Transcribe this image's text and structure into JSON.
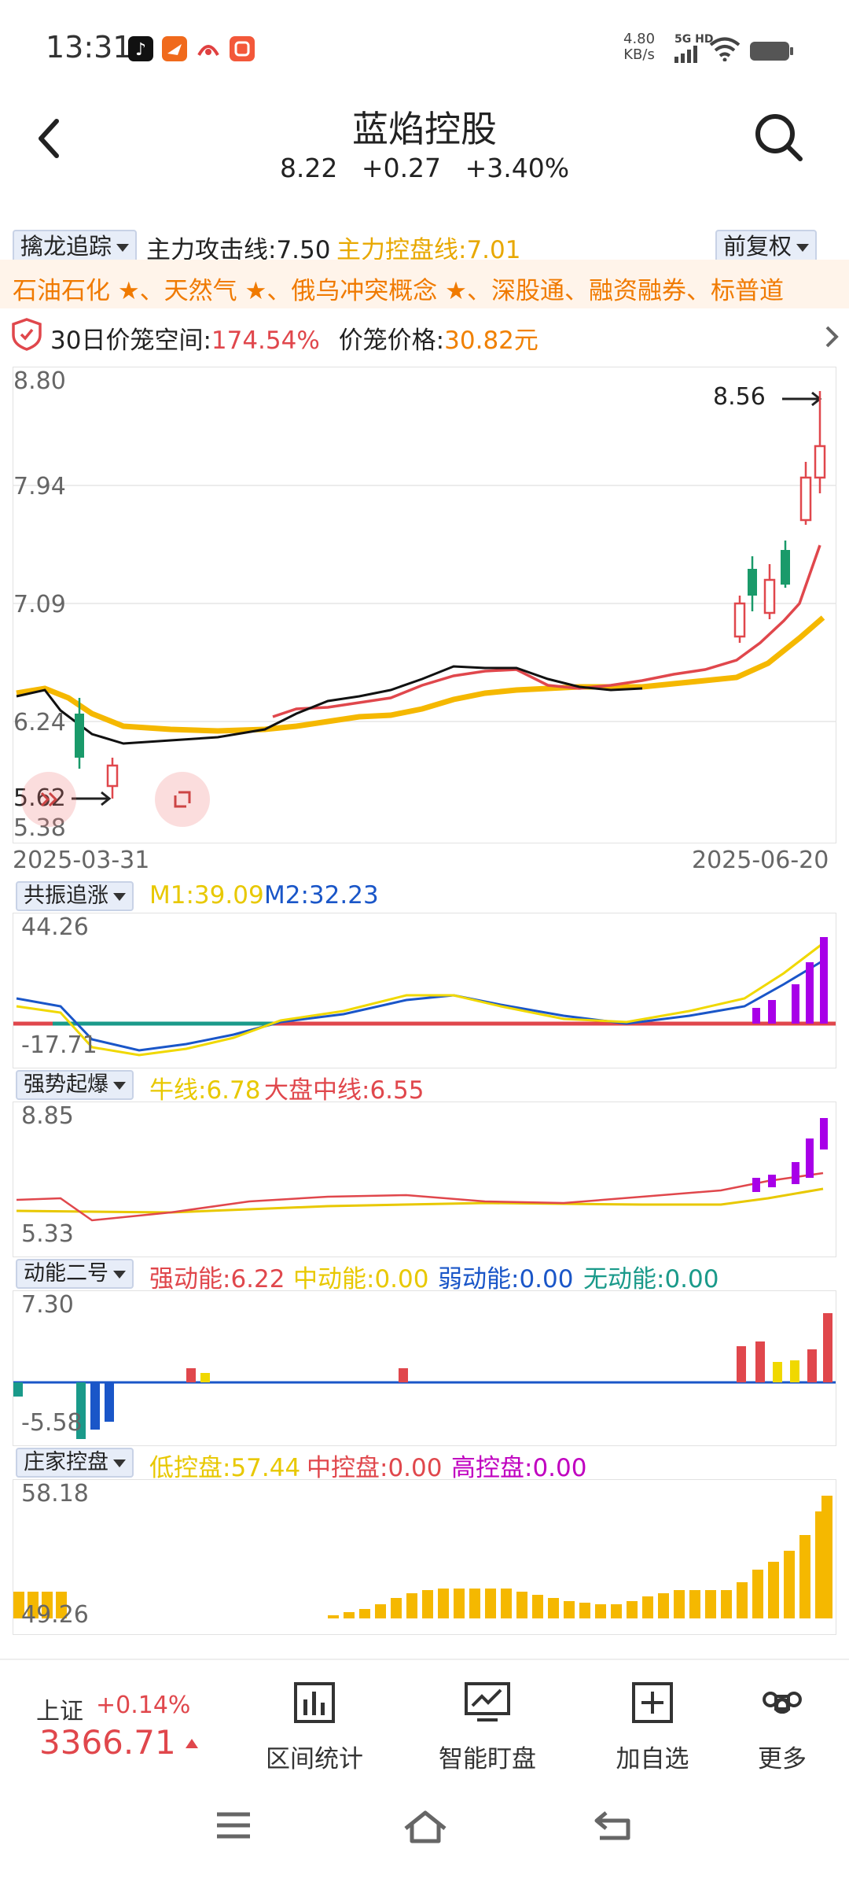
{
  "status": {
    "time": "13:31",
    "net_speed": "4.80",
    "net_unit": "KB/s",
    "net_type": "5G HD",
    "app_icons": [
      "tiktok-icon",
      "feishu-icon",
      "ai-app-icon",
      "taobao-icon"
    ]
  },
  "header": {
    "title": "蓝焰控股",
    "price": "8.22",
    "change": "+0.27",
    "change_pct": "+3.40%"
  },
  "indicator_bar": {
    "dropdown": "擒龙追踪",
    "attack_line": "主力攻击线:7.50",
    "control_line": "主力控盘线:7.01",
    "right_dropdown": "前复权"
  },
  "concepts": {
    "items": [
      "石油石化",
      "天然气",
      "俄乌冲突概念",
      "深股通",
      "融资融券",
      "标普道"
    ]
  },
  "cage": {
    "label1": "30日价笼空间:",
    "value1": "174.54%",
    "label2": "价笼价格:",
    "value2": "30.82元"
  },
  "main_chart": {
    "y_labels": [
      "8.80",
      "7.94",
      "7.09",
      "6.24",
      "5.38"
    ],
    "high_mark": "8.56",
    "low_mark": "5.62",
    "date_start": "2025-03-31",
    "date_end": "2025-06-20"
  },
  "panel1": {
    "dropdown": "共振追涨",
    "m1": "M1:39.09",
    "m2": "M2:32.23",
    "top": "44.26",
    "bottom": "-17.71"
  },
  "panel2": {
    "dropdown": "强势起爆",
    "bull": "牛线:6.78",
    "mid": "大盘中线:6.55",
    "top": "8.85",
    "bottom": "5.33"
  },
  "panel3": {
    "dropdown": "动能二号",
    "strong": "强动能:6.22",
    "middle": "中动能:0.00",
    "weak": "弱动能:0.00",
    "none": "无动能:0.00",
    "top": "7.30",
    "bottom": "-5.58"
  },
  "panel4": {
    "dropdown": "庄家控盘",
    "low": "低控盘:57.44",
    "mid": "中控盘:0.00",
    "high": "高控盘:0.00",
    "top": "58.18",
    "bottom": "49.26"
  },
  "bottom_bar": {
    "index_name": "上证",
    "index_change": "+0.14%",
    "index_value": "3366.71",
    "items": [
      {
        "label": "区间统计",
        "icon": "bar-chart-icon"
      },
      {
        "label": "智能盯盘",
        "icon": "monitor-chart-icon"
      },
      {
        "label": "加自选",
        "icon": "add-box-icon"
      },
      {
        "label": "更多",
        "icon": "command-icon"
      }
    ]
  },
  "colors": {
    "red": "#e0474c",
    "green": "#1a9a6a",
    "orange": "#f08000",
    "gold": "#f5b800",
    "yellow": "#f0d800",
    "blue": "#1a56c8",
    "purple": "#a800e8",
    "teal": "#1a9a8a",
    "magenta": "#c000c0"
  }
}
